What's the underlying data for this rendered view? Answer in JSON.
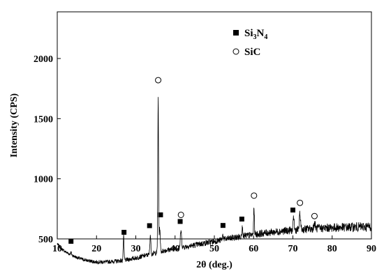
{
  "chart_data": {
    "type": "line",
    "title": "",
    "xlabel": "2θ (deg.)",
    "ylabel": "Intensity (CPS)",
    "xlim": [
      10,
      90
    ],
    "ylim": [
      0,
      2000
    ],
    "xticks": [
      10,
      20,
      30,
      40,
      50,
      60,
      70,
      80,
      90
    ],
    "yticks": [
      500,
      1000,
      1500,
      2000
    ],
    "grid": false,
    "legend_position": "top-center",
    "legend": [
      {
        "marker": "filled-square",
        "label_main": "Si",
        "label_sub1": "3",
        "label_mid": "N",
        "label_sub2": "4",
        "label": "Si3N4"
      },
      {
        "marker": "open-circle",
        "label": "SiC"
      }
    ],
    "baseline": [
      [
        10,
        460
      ],
      [
        11,
        420
      ],
      [
        12,
        395
      ],
      [
        13,
        375
      ],
      [
        14,
        360
      ],
      [
        15,
        345
      ],
      [
        16,
        335
      ],
      [
        17,
        325
      ],
      [
        18,
        318
      ],
      [
        19,
        312
      ],
      [
        20,
        308
      ],
      [
        22,
        308
      ],
      [
        24,
        312
      ],
      [
        26,
        318
      ],
      [
        28,
        328
      ],
      [
        30,
        342
      ],
      [
        32,
        358
      ],
      [
        34,
        375
      ],
      [
        36,
        392
      ],
      [
        38,
        408
      ],
      [
        40,
        420
      ],
      [
        42,
        432
      ],
      [
        44,
        442
      ],
      [
        46,
        455
      ],
      [
        48,
        468
      ],
      [
        50,
        480
      ],
      [
        52,
        492
      ],
      [
        54,
        505
      ],
      [
        56,
        515
      ],
      [
        58,
        525
      ],
      [
        60,
        535
      ],
      [
        62,
        545
      ],
      [
        64,
        553
      ],
      [
        66,
        560
      ],
      [
        68,
        567
      ],
      [
        70,
        573
      ],
      [
        72,
        578
      ],
      [
        74,
        583
      ],
      [
        76,
        587
      ],
      [
        78,
        590
      ],
      [
        80,
        593
      ],
      [
        82,
        595
      ],
      [
        84,
        597
      ],
      [
        86,
        599
      ],
      [
        88,
        600
      ],
      [
        90,
        602
      ]
    ],
    "peaks": [
      {
        "x": 13.5,
        "height": 20,
        "width": 0.15
      },
      {
        "x": 26.9,
        "height": 200,
        "width": 0.1
      },
      {
        "x": 33.7,
        "height": 160,
        "width": 0.12
      },
      {
        "x": 35.7,
        "height": 1280,
        "width": 0.1
      },
      {
        "x": 36.1,
        "height": 200,
        "width": 0.12
      },
      {
        "x": 41.5,
        "height": 140,
        "width": 0.15
      },
      {
        "x": 52.2,
        "height": 40,
        "width": 0.15
      },
      {
        "x": 57.1,
        "height": 70,
        "width": 0.15
      },
      {
        "x": 60.1,
        "height": 220,
        "width": 0.1
      },
      {
        "x": 70.2,
        "height": 110,
        "width": 0.12
      },
      {
        "x": 71.8,
        "height": 130,
        "width": 0.15
      },
      {
        "x": 75.5,
        "height": 40,
        "width": 0.2
      }
    ],
    "si3n4_markers": [
      {
        "x": 13.5,
        "y": 480
      },
      {
        "x": 27.0,
        "y": 555
      },
      {
        "x": 33.5,
        "y": 610
      },
      {
        "x": 36.3,
        "y": 700
      },
      {
        "x": 41.3,
        "y": 645
      },
      {
        "x": 52.2,
        "y": 612
      },
      {
        "x": 57.0,
        "y": 665
      },
      {
        "x": 70.0,
        "y": 740
      }
    ],
    "sic_markers": [
      {
        "x": 35.7,
        "y": 1820
      },
      {
        "x": 41.5,
        "y": 700
      },
      {
        "x": 60.1,
        "y": 860
      },
      {
        "x": 71.8,
        "y": 800
      },
      {
        "x": 75.5,
        "y": 690
      }
    ]
  }
}
